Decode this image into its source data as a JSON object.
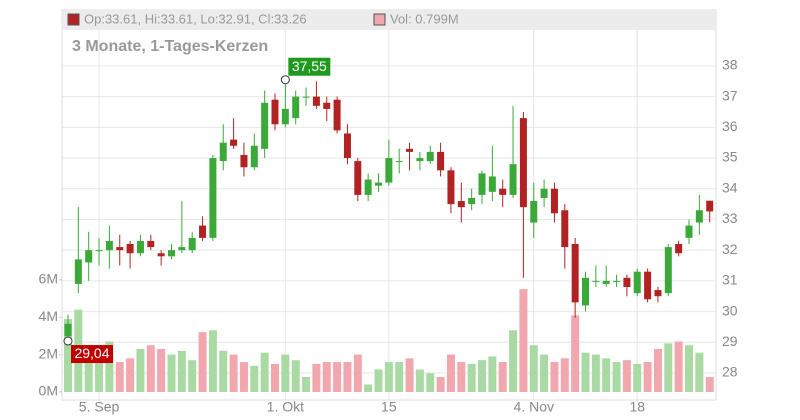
{
  "chart_data": {
    "type": "candlestick",
    "title": "3 Monate, 1-Tages-Kerzen",
    "legend": {
      "ohlc": "Op:33.61, Hi:33.61, Lo:32.91, Cl:33.26",
      "volume": "Vol: 0.799M"
    },
    "categories": [
      null,
      null,
      null,
      "5. Sep",
      null,
      null,
      null,
      null,
      null,
      null,
      null,
      null,
      null,
      null,
      null,
      null,
      null,
      null,
      null,
      null,
      null,
      "1. Okt",
      null,
      null,
      null,
      null,
      null,
      null,
      null,
      null,
      null,
      "15",
      null,
      null,
      null,
      null,
      null,
      null,
      null,
      null,
      null,
      null,
      null,
      null,
      null,
      "4. Nov",
      null,
      null,
      null,
      null,
      null,
      null,
      null,
      null,
      null,
      "18",
      null,
      null,
      null,
      null,
      null,
      null,
      null
    ],
    "open": [
      29.2,
      30.9,
      31.6,
      32.0,
      32.0,
      32.1,
      32.2,
      31.9,
      32.3,
      31.9,
      31.8,
      32.0,
      32.0,
      32.8,
      32.4,
      34.9,
      35.6,
      35.1,
      34.7,
      35.3,
      36.9,
      36.1,
      36.3,
      37.0,
      37.0,
      36.8,
      36.9,
      35.8,
      34.9,
      33.8,
      34.1,
      34.2,
      34.9,
      35.3,
      34.9,
      34.9,
      35.2,
      34.6,
      33.6,
      33.5,
      33.8,
      33.9,
      34.0,
      33.8,
      36.3,
      32.9,
      33.7,
      34.0,
      33.3,
      32.2,
      30.2,
      31.0,
      30.9,
      31.0,
      31.1,
      30.6,
      31.3,
      30.7,
      30.6,
      32.2,
      32.4,
      32.9,
      33.61
    ],
    "high": [
      29.9,
      33.4,
      32.6,
      32.4,
      32.8,
      32.5,
      32.3,
      32.5,
      32.5,
      32.0,
      32.2,
      33.6,
      32.6,
      33.1,
      35.1,
      36.1,
      36.3,
      35.5,
      35.8,
      37.2,
      37.1,
      37.55,
      37.2,
      37.3,
      37.5,
      37.0,
      37.0,
      36.1,
      35.0,
      34.5,
      34.5,
      35.6,
      35.3,
      35.5,
      35.2,
      35.4,
      35.5,
      34.7,
      34.2,
      34.0,
      34.6,
      35.4,
      34.3,
      36.7,
      36.5,
      34.2,
      34.3,
      34.2,
      33.5,
      32.4,
      31.3,
      31.5,
      31.5,
      31.2,
      31.2,
      31.4,
      31.4,
      30.8,
      32.2,
      32.3,
      33.0,
      33.8,
      33.61
    ],
    "low": [
      29.04,
      30.6,
      31.0,
      31.5,
      31.4,
      31.5,
      31.4,
      31.8,
      32.0,
      31.5,
      31.7,
      31.9,
      31.9,
      32.3,
      32.3,
      34.6,
      35.3,
      34.4,
      34.6,
      35.0,
      35.9,
      36.0,
      36.1,
      36.7,
      36.6,
      36.2,
      35.8,
      34.8,
      33.6,
      33.6,
      33.9,
      34.1,
      34.5,
      34.6,
      34.6,
      34.8,
      34.4,
      33.2,
      32.9,
      33.3,
      33.5,
      33.6,
      33.4,
      33.7,
      31.1,
      32.4,
      33.4,
      32.9,
      31.4,
      29.8,
      30.0,
      30.8,
      30.8,
      30.8,
      30.5,
      30.5,
      30.3,
      30.3,
      30.5,
      31.8,
      32.2,
      32.5,
      32.91
    ],
    "close": [
      29.6,
      31.7,
      32.0,
      32.0,
      32.3,
      32.0,
      31.9,
      32.3,
      32.1,
      31.8,
      32.0,
      32.1,
      32.4,
      32.4,
      35.0,
      35.5,
      35.4,
      34.7,
      35.4,
      36.8,
      36.1,
      36.6,
      37.0,
      37.0,
      36.7,
      36.6,
      35.9,
      35.0,
      33.8,
      34.3,
      34.2,
      35.0,
      34.9,
      35.2,
      35.0,
      35.2,
      34.6,
      33.5,
      33.4,
      33.7,
      34.5,
      34.4,
      33.8,
      34.8,
      33.4,
      33.6,
      34.0,
      33.2,
      32.1,
      30.3,
      31.1,
      31.0,
      31.0,
      31.0,
      30.8,
      31.3,
      30.4,
      30.5,
      32.1,
      31.9,
      32.8,
      33.3,
      33.26
    ],
    "volume": [
      3.9,
      4.4,
      2.5,
      2.3,
      2.7,
      1.6,
      1.8,
      2.3,
      2.5,
      2.3,
      2.0,
      2.2,
      1.7,
      3.2,
      3.3,
      2.2,
      2.0,
      1.6,
      1.4,
      2.1,
      1.5,
      2.0,
      1.7,
      0.8,
      1.5,
      1.6,
      1.6,
      1.6,
      2.0,
      0.4,
      1.2,
      1.6,
      1.6,
      1.8,
      1.2,
      1.0,
      0.8,
      2.0,
      1.6,
      1.5,
      1.7,
      1.9,
      1.6,
      3.3,
      5.5,
      2.5,
      2.0,
      1.6,
      1.8,
      4.1,
      2.1,
      2.0,
      1.8,
      1.6,
      1.7,
      1.5,
      1.6,
      2.3,
      2.6,
      2.7,
      2.5,
      2.1,
      0.799
    ],
    "colors": {
      "up": "#3aa93a",
      "down": "#b22222",
      "volume_up": "#a9daa3",
      "volume_down": "#f2a6ae"
    },
    "ylim": [
      27.12,
      39.17
    ],
    "yticks": [
      28,
      29,
      30,
      31,
      32,
      33,
      34,
      35,
      36,
      37,
      38
    ],
    "y2lim": [
      -0.43,
      19.36
    ],
    "y2ticks": [
      {
        "value": 0,
        "label": "0M"
      },
      {
        "value": 2,
        "label": "2M"
      },
      {
        "value": 4,
        "label": "4M"
      },
      {
        "value": 6,
        "label": "6M"
      }
    ],
    "annotations": [
      {
        "label": "37,55",
        "value": 37.55,
        "kind": "high",
        "color": "#1e9a1e"
      },
      {
        "label": "29,04",
        "value": 29.04,
        "kind": "low",
        "color": "#c00000"
      }
    ],
    "grid": true
  }
}
